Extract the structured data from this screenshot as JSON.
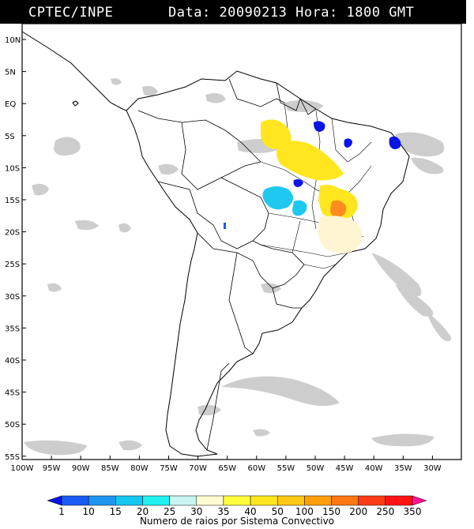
{
  "header": {
    "org": "CPTEC/INPE",
    "data_label": "Data:",
    "date": "20090213",
    "hora_label": "Hora:",
    "hour": "1800 GMT"
  },
  "map": {
    "lat_labels": [
      "10N",
      "5N",
      "EQ",
      "5S",
      "10S",
      "15S",
      "20S",
      "25S",
      "30S",
      "35S",
      "40S",
      "45S",
      "50S",
      "55S"
    ],
    "lon_labels": [
      "100W",
      "95W",
      "90W",
      "85W",
      "80W",
      "75W",
      "70W",
      "65W",
      "60W",
      "55W",
      "50W",
      "45W",
      "40W",
      "35W",
      "30W"
    ],
    "cloud_color": "#c8c8c8",
    "coast_color": "#000000"
  },
  "legend": {
    "caption": "Numero de raios por Sistema Convectivo",
    "thresholds": [
      "1",
      "10",
      "15",
      "20",
      "25",
      "30",
      "35",
      "40",
      "50",
      "100",
      "150",
      "200",
      "250",
      "350"
    ],
    "colors": [
      "#0a14e6",
      "#1a5af5",
      "#1e96f0",
      "#16c8f0",
      "#20f0f0",
      "#c8f5f0",
      "#fffad2",
      "#ffff3c",
      "#ffe61e",
      "#ffc814",
      "#ffa00a",
      "#ff7814",
      "#ff3c14",
      "#ff1414",
      "#ff1496"
    ]
  },
  "systems": [
    {
      "id": "amazon-north",
      "color": "#ffe61e"
    },
    {
      "id": "amazon-central",
      "color": "#ffe61e"
    },
    {
      "id": "central-cyan",
      "color": "#1ec8f0"
    },
    {
      "id": "bahia-orange",
      "color": "#ff8c1e"
    },
    {
      "id": "northeast-blue",
      "color": "#0a14e6"
    },
    {
      "id": "minas-pale",
      "color": "#fff5d2"
    }
  ]
}
